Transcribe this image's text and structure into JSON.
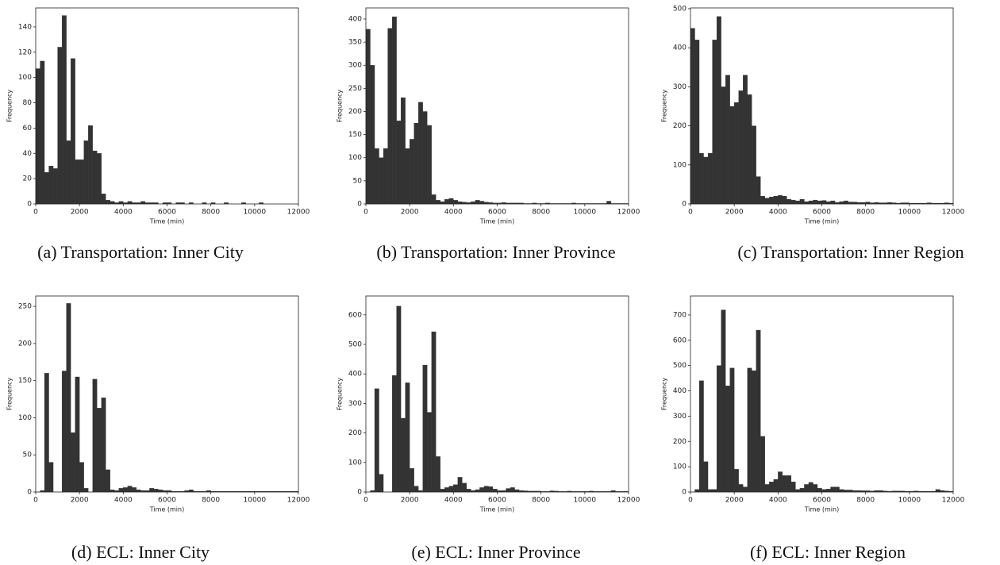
{
  "chart_data": [
    {
      "type": "histogram",
      "caption": "(a) Transportation: Inner City",
      "xlabel": "Time (min)",
      "ylabel": "Frequency",
      "color": "#333333",
      "bins": [
        0,
        200,
        400,
        600,
        800,
        1000,
        1200,
        1400,
        1600,
        1800,
        2000,
        2200,
        2400,
        2600,
        2800,
        3000,
        3200,
        3400,
        3600,
        3800,
        4000,
        4200,
        4400,
        4600,
        4800,
        5000,
        5200,
        5400,
        5600,
        5800,
        6000,
        6200,
        6400,
        6600,
        6800,
        7000,
        7200,
        7400,
        7600,
        7800,
        8000,
        8200,
        8400,
        8600,
        8800,
        9000,
        9200,
        9400,
        9600,
        9800,
        10000,
        10200,
        10400,
        10600,
        10800,
        11000,
        11200,
        11400,
        11600,
        11800,
        12000
      ],
      "values": [
        107,
        113,
        25,
        30,
        28,
        124,
        149,
        50,
        115,
        35,
        35,
        50,
        62,
        42,
        40,
        8,
        3,
        2,
        1,
        2,
        1,
        2,
        1,
        1,
        2,
        1,
        1,
        1,
        0,
        1,
        1,
        0,
        1,
        1,
        0,
        1,
        0,
        0,
        1,
        0,
        1,
        0,
        0,
        1,
        0,
        0,
        0,
        1,
        0,
        0,
        0,
        1,
        0,
        0,
        0,
        0,
        0,
        0,
        0,
        0
      ],
      "xlim": [
        0,
        12000
      ],
      "xticks": [
        0,
        2000,
        4000,
        6000,
        8000,
        10000,
        12000
      ],
      "ylim": [
        0,
        155
      ],
      "yticks": [
        0,
        20,
        40,
        60,
        80,
        100,
        120,
        140
      ]
    },
    {
      "type": "histogram",
      "caption": "(b) Transportation: Inner Province",
      "xlabel": "Time (min)",
      "ylabel": "Frequency",
      "color": "#333333",
      "bins": [
        0,
        200,
        400,
        600,
        800,
        1000,
        1200,
        1400,
        1600,
        1800,
        2000,
        2200,
        2400,
        2600,
        2800,
        3000,
        3200,
        3400,
        3600,
        3800,
        4000,
        4200,
        4400,
        4600,
        4800,
        5000,
        5200,
        5400,
        5600,
        5800,
        6000,
        6200,
        6400,
        6600,
        6800,
        7000,
        7200,
        7400,
        7600,
        7800,
        8000,
        8200,
        8400,
        8600,
        8800,
        9000,
        9200,
        9400,
        9600,
        9800,
        10000,
        10200,
        10400,
        10600,
        10800,
        11000,
        11200,
        11400,
        11600,
        11800,
        12000
      ],
      "values": [
        378,
        300,
        120,
        100,
        120,
        380,
        405,
        180,
        230,
        120,
        140,
        175,
        220,
        200,
        170,
        20,
        8,
        5,
        10,
        12,
        8,
        5,
        4,
        3,
        5,
        8,
        6,
        4,
        3,
        2,
        2,
        3,
        2,
        2,
        2,
        2,
        1,
        1,
        2,
        1,
        1,
        2,
        1,
        1,
        1,
        1,
        1,
        2,
        1,
        1,
        1,
        1,
        1,
        1,
        1,
        6,
        1,
        1,
        1,
        1
      ],
      "xlim": [
        0,
        12000
      ],
      "xticks": [
        0,
        2000,
        4000,
        6000,
        8000,
        10000,
        12000
      ],
      "ylim": [
        0,
        424
      ],
      "yticks": [
        0,
        50,
        100,
        150,
        200,
        250,
        300,
        350,
        400
      ]
    },
    {
      "type": "histogram",
      "caption": "(c) Transportation: Inner Region",
      "xlabel": "Time (min)",
      "ylabel": "Frequency",
      "color": "#333333",
      "bins": [
        0,
        200,
        400,
        600,
        800,
        1000,
        1200,
        1400,
        1600,
        1800,
        2000,
        2200,
        2400,
        2600,
        2800,
        3000,
        3200,
        3400,
        3600,
        3800,
        4000,
        4200,
        4400,
        4600,
        4800,
        5000,
        5200,
        5400,
        5600,
        5800,
        6000,
        6200,
        6400,
        6600,
        6800,
        7000,
        7200,
        7400,
        7600,
        7800,
        8000,
        8200,
        8400,
        8600,
        8800,
        9000,
        9200,
        9400,
        9600,
        9800,
        10000,
        10200,
        10400,
        10600,
        10800,
        11000,
        11200,
        11400,
        11600,
        11800,
        12000
      ],
      "values": [
        450,
        420,
        130,
        120,
        130,
        420,
        480,
        300,
        330,
        250,
        260,
        290,
        330,
        280,
        200,
        70,
        20,
        15,
        18,
        20,
        22,
        20,
        12,
        10,
        8,
        12,
        6,
        8,
        10,
        8,
        9,
        6,
        8,
        4,
        6,
        8,
        5,
        5,
        4,
        4,
        5,
        3,
        4,
        3,
        3,
        4,
        3,
        2,
        3,
        3,
        2,
        2,
        2,
        2,
        3,
        2,
        2,
        2,
        3,
        2
      ],
      "xlim": [
        0,
        12000
      ],
      "xticks": [
        0,
        2000,
        4000,
        6000,
        8000,
        10000,
        12000
      ],
      "ylim": [
        0,
        502
      ],
      "yticks": [
        0,
        100,
        200,
        300,
        400,
        500
      ]
    },
    {
      "type": "histogram",
      "caption": "(d) ECL: Inner City",
      "xlabel": "Time (min)",
      "ylabel": "Frequency",
      "color": "#333333",
      "bins": [
        0,
        200,
        400,
        600,
        800,
        1000,
        1200,
        1400,
        1600,
        1800,
        2000,
        2200,
        2400,
        2600,
        2800,
        3000,
        3200,
        3400,
        3600,
        3800,
        4000,
        4200,
        4400,
        4600,
        4800,
        5000,
        5200,
        5400,
        5600,
        5800,
        6000,
        6200,
        6400,
        6600,
        6800,
        7000,
        7200,
        7400,
        7600,
        7800,
        8000,
        8200,
        8400,
        8600,
        8800,
        9000,
        9200,
        9400,
        9600,
        9800,
        10000,
        10200,
        10400,
        10600,
        10800,
        11000,
        11200,
        11400,
        11600,
        11800,
        12000
      ],
      "values": [
        0,
        2,
        160,
        40,
        0,
        0,
        163,
        254,
        80,
        155,
        40,
        5,
        0,
        152,
        113,
        127,
        30,
        3,
        2,
        5,
        6,
        8,
        6,
        3,
        2,
        2,
        5,
        4,
        3,
        2,
        2,
        1,
        1,
        1,
        2,
        3,
        1,
        1,
        1,
        2,
        1,
        1,
        1,
        1,
        1,
        1,
        1,
        1,
        1,
        1,
        1,
        1,
        1,
        1,
        1,
        1,
        1,
        1,
        1,
        1
      ],
      "xlim": [
        0,
        12000
      ],
      "xticks": [
        0,
        2000,
        4000,
        6000,
        8000,
        10000,
        12000
      ],
      "ylim": [
        0,
        264
      ],
      "yticks": [
        0,
        50,
        100,
        150,
        200,
        250
      ]
    },
    {
      "type": "histogram",
      "caption": "(e) ECL: Inner Province",
      "xlabel": "Time (min)",
      "ylabel": "Frequency",
      "color": "#333333",
      "bins": [
        0,
        200,
        400,
        600,
        800,
        1000,
        1200,
        1400,
        1600,
        1800,
        2000,
        2200,
        2400,
        2600,
        2800,
        3000,
        3200,
        3400,
        3600,
        3800,
        4000,
        4200,
        4400,
        4600,
        4800,
        5000,
        5200,
        5400,
        5600,
        5800,
        6000,
        6200,
        6400,
        6600,
        6800,
        7000,
        7200,
        7400,
        7600,
        7800,
        8000,
        8200,
        8400,
        8600,
        8800,
        9000,
        9200,
        9400,
        9600,
        9800,
        10000,
        10200,
        10400,
        10600,
        10800,
        11000,
        11200,
        11400,
        11600,
        11800,
        12000
      ],
      "values": [
        0,
        5,
        350,
        60,
        0,
        0,
        395,
        630,
        250,
        370,
        80,
        20,
        5,
        430,
        270,
        543,
        120,
        10,
        15,
        20,
        25,
        50,
        30,
        10,
        5,
        8,
        15,
        20,
        18,
        10,
        5,
        5,
        12,
        15,
        8,
        5,
        4,
        3,
        3,
        3,
        2,
        2,
        4,
        3,
        2,
        2,
        3,
        2,
        2,
        2,
        2,
        3,
        2,
        2,
        2,
        2,
        5,
        2,
        2,
        2
      ],
      "xlim": [
        0,
        12000
      ],
      "xticks": [
        0,
        2000,
        4000,
        6000,
        8000,
        10000,
        12000
      ],
      "ylim": [
        0,
        664
      ],
      "yticks": [
        0,
        100,
        200,
        300,
        400,
        500,
        600
      ]
    },
    {
      "type": "histogram",
      "caption": "(f) ECL: Inner Region",
      "xlabel": "Time (min)",
      "ylabel": "Frequency",
      "color": "#333333",
      "bins": [
        0,
        200,
        400,
        600,
        800,
        1000,
        1200,
        1400,
        1600,
        1800,
        2000,
        2200,
        2400,
        2600,
        2800,
        3000,
        3200,
        3400,
        3600,
        3800,
        4000,
        4200,
        4400,
        4600,
        4800,
        5000,
        5200,
        5400,
        5600,
        5800,
        6000,
        6200,
        6400,
        6600,
        6800,
        7000,
        7200,
        7400,
        7600,
        7800,
        8000,
        8200,
        8400,
        8600,
        8800,
        9000,
        9200,
        9400,
        9600,
        9800,
        10000,
        10200,
        10400,
        10600,
        10800,
        11000,
        11200,
        11400,
        11600,
        11800,
        12000
      ],
      "values": [
        0,
        10,
        440,
        120,
        10,
        10,
        500,
        720,
        420,
        490,
        90,
        30,
        20,
        490,
        480,
        640,
        220,
        30,
        40,
        50,
        80,
        65,
        65,
        40,
        10,
        15,
        30,
        38,
        30,
        15,
        10,
        12,
        20,
        20,
        10,
        8,
        8,
        6,
        6,
        5,
        5,
        4,
        6,
        6,
        4,
        3,
        4,
        4,
        4,
        3,
        3,
        4,
        3,
        3,
        3,
        3,
        10,
        6,
        4,
        3
      ],
      "xlim": [
        0,
        12000
      ],
      "xticks": [
        0,
        2000,
        4000,
        6000,
        8000,
        10000,
        12000
      ],
      "ylim": [
        0,
        775
      ],
      "yticks": [
        0,
        100,
        200,
        300,
        400,
        500,
        600,
        700
      ]
    }
  ]
}
